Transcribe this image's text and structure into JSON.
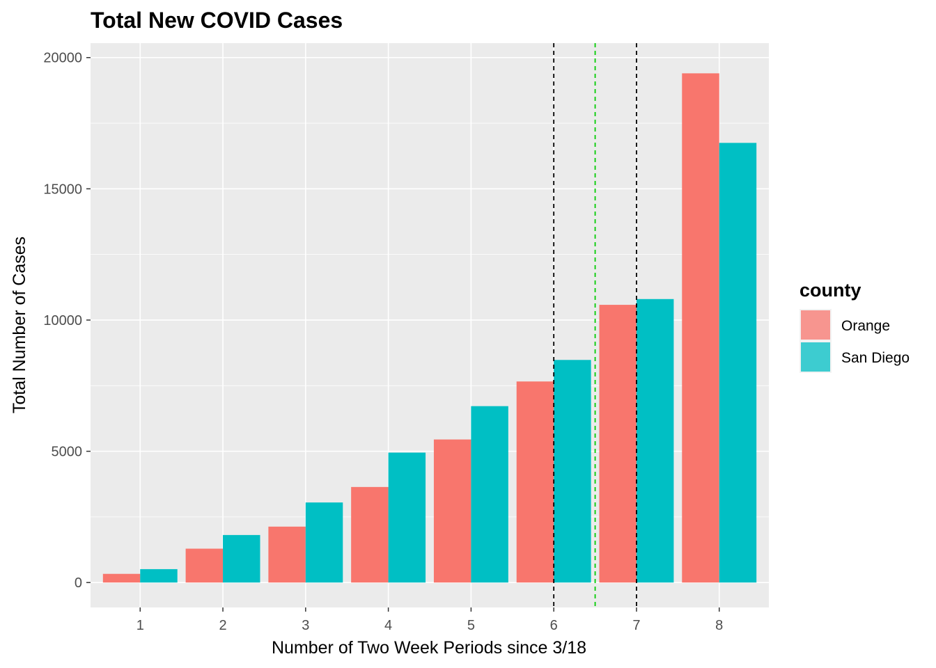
{
  "chart_data": {
    "type": "bar",
    "title": "Total New COVID Cases",
    "xlabel": "Number of Two Week Periods since 3/18",
    "ylabel": "Total Number of Cases",
    "categories": [
      "1",
      "2",
      "3",
      "4",
      "5",
      "6",
      "7",
      "8"
    ],
    "series": [
      {
        "name": "Orange",
        "values": [
          330,
          1290,
          2130,
          3640,
          5450,
          7660,
          10580,
          19400
        ],
        "color": "#F8766D"
      },
      {
        "name": "San Diego",
        "values": [
          510,
          1810,
          3050,
          4950,
          6720,
          8480,
          10800,
          16750
        ],
        "color": "#00BFC4"
      }
    ],
    "ylim": [
      -950,
      20550
    ],
    "yticks": [
      0,
      5000,
      10000,
      15000,
      20000
    ],
    "vlines": [
      {
        "x": 6,
        "color": "#000000",
        "style": "dashed"
      },
      {
        "x": 6.5,
        "color": "#00CC00",
        "style": "dashed"
      },
      {
        "x": 7,
        "color": "#000000",
        "style": "dashed"
      }
    ],
    "legend": {
      "title": "county",
      "position": "right"
    },
    "grid": true
  }
}
